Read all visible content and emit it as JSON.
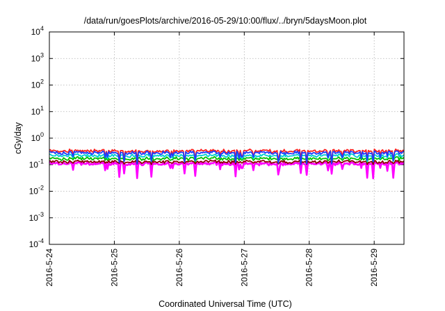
{
  "chart_data": {
    "type": "line",
    "title": "/data/run/goesPlots/archive/2016-05-29/10:00/flux/../bryn/5daysMoon.plot",
    "xlabel": "Coordinated Universal Time (UTC)",
    "ylabel": "cGy/day",
    "x_range": [
      "2016-05-24 00:00",
      "2016-05-29 11:00"
    ],
    "x_ticks": [
      "2016-5-24",
      "2016-5-25",
      "2016-5-26",
      "2016-5-27",
      "2016-5-28",
      "2016-5-29"
    ],
    "y_scale": "log",
    "ylim": [
      0.0001,
      10000
    ],
    "y_ticks": [
      {
        "base": "10",
        "exp": "4"
      },
      {
        "base": "10",
        "exp": "3"
      },
      {
        "base": "10",
        "exp": "2"
      },
      {
        "base": "10",
        "exp": "1"
      },
      {
        "base": "10",
        "exp": "0"
      },
      {
        "base": "10",
        "exp": "-1"
      },
      {
        "base": "10",
        "exp": "-2"
      },
      {
        "base": "10",
        "exp": "-3"
      },
      {
        "base": "10",
        "exp": "-4"
      }
    ],
    "grid": true,
    "series": [
      {
        "color": "#ff00ff",
        "typical": 0.11,
        "dips_to": 0.03
      },
      {
        "color": "#8b0000",
        "typical": 0.13,
        "dips_to": 0.1
      },
      {
        "color": "#00c000",
        "typical": 0.17,
        "dips_to": 0.12
      },
      {
        "color": "#00ced1",
        "typical": 0.22,
        "dips_to": 0.12
      },
      {
        "color": "#ff2020",
        "typical": 0.33,
        "dips_to": 0.12
      },
      {
        "color": "#1e3cff",
        "typical": 0.28,
        "dips_to": 0.1
      }
    ]
  }
}
